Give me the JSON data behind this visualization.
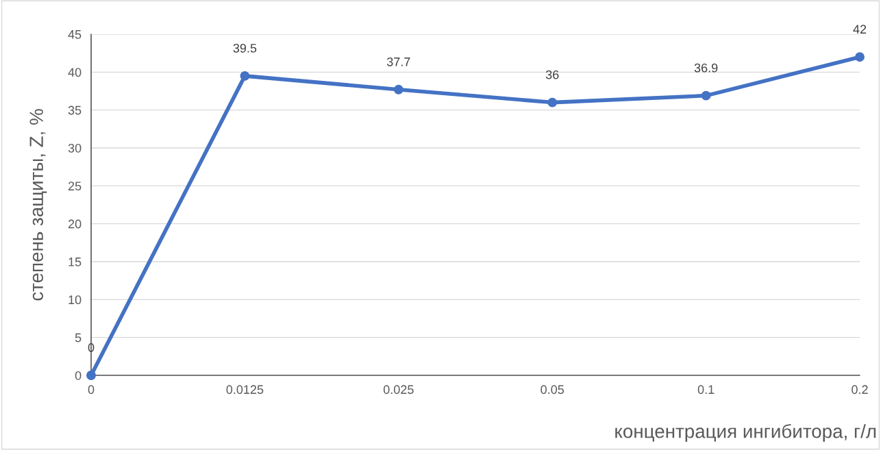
{
  "chart_data": {
    "type": "line",
    "xlabel": "концентрация ингибитора, г/л",
    "ylabel": "степень защиты, Z, %",
    "categories": [
      "0",
      "0.0125",
      "0.025",
      "0.05",
      "0.1",
      "0.2"
    ],
    "series": [
      {
        "color": "#4472c4",
        "values": [
          0,
          39.5,
          37.7,
          36,
          36.9,
          42
        ]
      }
    ],
    "ylim": [
      0,
      45
    ],
    "yticks": [
      0,
      5,
      10,
      15,
      20,
      25,
      30,
      35,
      40,
      45
    ],
    "grid": "y",
    "marker": "circle",
    "line_style": "solid",
    "data_labels": true
  }
}
